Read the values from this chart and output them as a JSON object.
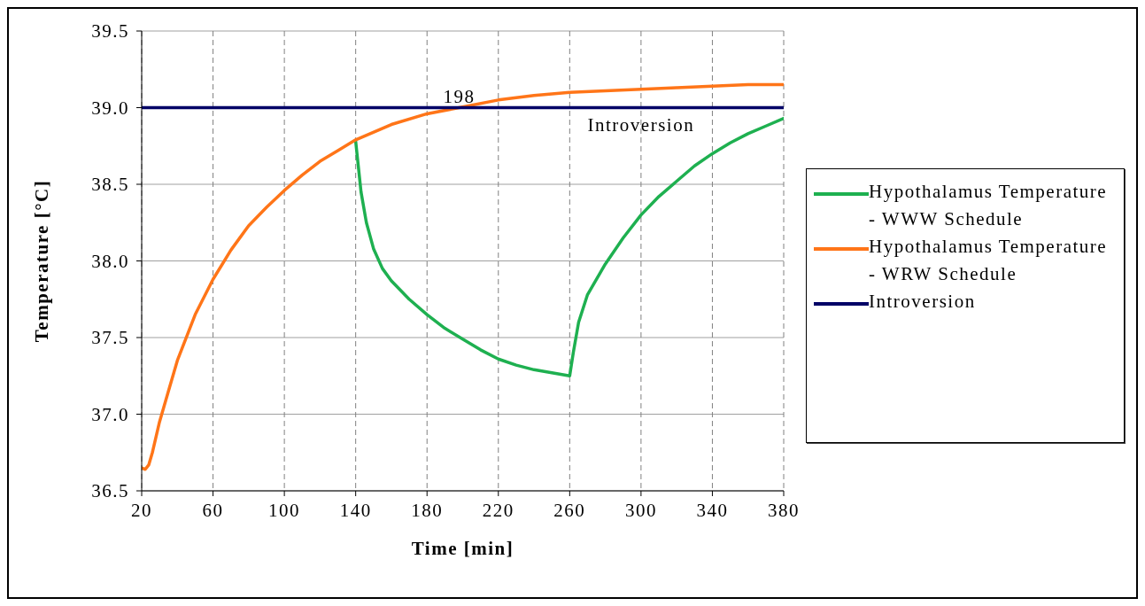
{
  "chart_data": {
    "type": "line",
    "xlabel": "Time [min]",
    "ylabel": "Temperature [°C]",
    "xlim": [
      20,
      380
    ],
    "xticks": [
      20,
      60,
      100,
      140,
      180,
      220,
      260,
      300,
      340,
      380
    ],
    "ylim": [
      36.5,
      39.5
    ],
    "yticks": [
      {
        "value": 36.5,
        "label": "36.5"
      },
      {
        "value": 37,
        "label": "37.0"
      },
      {
        "value": 37.5,
        "label": "37.5"
      },
      {
        "value": 38,
        "label": "38.0"
      },
      {
        "value": 38.5,
        "label": "38.5"
      },
      {
        "value": 39,
        "label": "39.0"
      },
      {
        "value": 39.5,
        "label": "39.5"
      }
    ],
    "grid": true,
    "legend": "right",
    "marker": "none",
    "line_style": "solid",
    "series": [
      {
        "name": "Hypothalamus Temperature - WWW Schedule",
        "color": "#1eb050",
        "x": [
          140,
          143,
          146,
          150,
          155,
          160,
          170,
          180,
          190,
          200,
          210,
          220,
          230,
          240,
          250,
          260,
          262,
          265,
          270,
          280,
          290,
          300,
          310,
          320,
          330,
          340,
          350,
          360,
          370,
          380
        ],
        "values": [
          38.78,
          38.45,
          38.25,
          38.08,
          37.95,
          37.87,
          37.75,
          37.65,
          37.56,
          37.49,
          37.42,
          37.36,
          37.32,
          37.29,
          37.27,
          37.25,
          37.4,
          37.6,
          37.78,
          37.98,
          38.15,
          38.3,
          38.42,
          38.52,
          38.62,
          38.7,
          38.77,
          38.83,
          38.88,
          38.93
        ]
      },
      {
        "name": "Hypothalamus Temperature - WRW Schedule",
        "color": "#ff7518",
        "x": [
          20,
          22,
          24,
          26,
          30,
          35,
          40,
          50,
          60,
          70,
          80,
          90,
          100,
          110,
          120,
          130,
          140,
          160,
          180,
          198,
          220,
          240,
          260,
          280,
          300,
          320,
          340,
          360,
          380
        ],
        "values": [
          36.65,
          36.64,
          36.67,
          36.75,
          36.95,
          37.15,
          37.35,
          37.65,
          37.88,
          38.07,
          38.23,
          38.35,
          38.46,
          38.56,
          38.65,
          38.72,
          38.79,
          38.89,
          38.96,
          39.0,
          39.05,
          39.08,
          39.1,
          39.11,
          39.12,
          39.13,
          39.14,
          39.15,
          39.15
        ]
      },
      {
        "name": "Introversion",
        "color": "#000066",
        "x": [
          20,
          380
        ],
        "values": [
          39.0,
          39.0
        ]
      }
    ],
    "annotations": [
      {
        "text": "198",
        "x": 198,
        "y": 39.0
      },
      {
        "text": "Introversion",
        "x": 300,
        "y": 39.0
      }
    ]
  }
}
